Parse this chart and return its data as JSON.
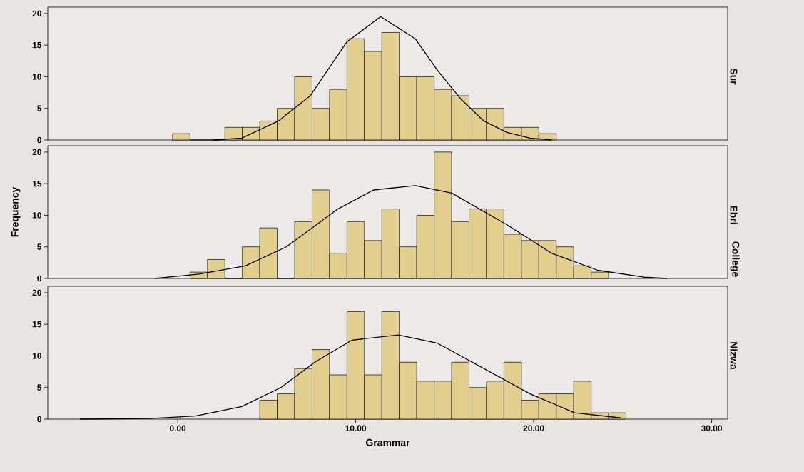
{
  "chart_data": [
    {
      "type": "histogram",
      "title": "Sur",
      "xlim": [
        -7.3,
        30.9
      ],
      "ylim": [
        0,
        21
      ],
      "yticks": [
        0,
        5,
        10,
        15,
        20
      ],
      "tick_labels": "y",
      "series": [
        {
          "type": "histogram",
          "color": "#e2cf8e",
          "bins": [
            -0.29,
            0.69,
            1.67,
            2.65,
            3.63,
            4.61,
            5.59,
            6.57,
            7.55,
            8.53,
            9.51,
            10.49,
            11.47,
            12.45,
            13.43,
            14.41,
            15.39,
            16.37,
            17.35,
            18.33,
            19.31,
            20.29,
            21.27
          ],
          "values": [
            1,
            0,
            0,
            2,
            2,
            3,
            5,
            10,
            5,
            8,
            16,
            14,
            17,
            10,
            10,
            8,
            7,
            5,
            5,
            2,
            2,
            1
          ]
        },
        {
          "type": "line",
          "color": "#000000",
          "x": [
            2.0,
            3.6,
            5.65,
            7.45,
            9.5,
            11.4,
            13.35,
            14.6,
            15.9,
            17.2,
            18.5,
            19.8,
            21.0
          ],
          "values": [
            0,
            0.3,
            3,
            7,
            15.5,
            19.5,
            16,
            11,
            6.5,
            3,
            1.2,
            0.3,
            0
          ]
        }
      ]
    },
    {
      "type": "histogram",
      "title": "Ebri",
      "ylabel": "Frequency",
      "annotations": [
        "College"
      ],
      "xlim": [
        -7.3,
        30.9
      ],
      "ylim": [
        0,
        21
      ],
      "yticks": [
        0,
        5,
        10,
        15,
        20
      ],
      "tick_labels": "y",
      "series": [
        {
          "type": "histogram",
          "color": "#e2cf8e",
          "bins": [
            0.69,
            1.67,
            2.65,
            3.63,
            4.61,
            5.59,
            6.57,
            7.55,
            8.53,
            9.51,
            10.49,
            11.47,
            12.45,
            13.43,
            14.41,
            15.39,
            16.37,
            17.35,
            18.33,
            19.31,
            20.29,
            21.27,
            22.25,
            23.23,
            24.21
          ],
          "values": [
            1,
            3,
            0,
            5,
            8,
            0,
            9,
            14,
            4,
            9,
            6,
            11,
            5,
            10,
            20,
            9,
            11,
            11,
            7,
            6,
            6,
            5,
            2,
            1
          ]
        },
        {
          "type": "line",
          "color": "#000000",
          "x": [
            -1.3,
            1.2,
            3.8,
            6.1,
            9.0,
            11.0,
            13.35,
            15.4,
            18.5,
            21.0,
            23.6,
            26.2,
            27.5
          ],
          "values": [
            0,
            0.7,
            2,
            5,
            11,
            14,
            14.7,
            13.5,
            8.5,
            4,
            1.3,
            0.2,
            0
          ]
        }
      ]
    },
    {
      "type": "histogram",
      "title": "Nizwa",
      "xlabel": "Grammar",
      "xlim": [
        -7.3,
        30.9
      ],
      "ylim": [
        0,
        21
      ],
      "yticks": [
        0,
        5,
        10,
        15,
        20
      ],
      "xticks": [
        {
          "value": 0,
          "label": "0.00"
        },
        {
          "value": 10,
          "label": "10.00"
        },
        {
          "value": 20,
          "label": "20.00"
        },
        {
          "value": 30,
          "label": "30.00"
        }
      ],
      "series": [
        {
          "type": "histogram",
          "color": "#e2cf8e",
          "bins": [
            4.61,
            5.59,
            6.57,
            7.55,
            8.53,
            9.51,
            10.49,
            11.47,
            12.45,
            13.43,
            14.41,
            15.39,
            16.37,
            17.35,
            18.33,
            19.31,
            20.29,
            21.27,
            22.25,
            23.23,
            24.21,
            25.19
          ],
          "values": [
            3,
            4,
            8,
            11,
            7,
            17,
            7,
            17,
            9,
            6,
            6,
            9,
            5,
            6,
            9,
            3,
            4,
            4,
            6,
            1,
            1
          ]
        },
        {
          "type": "line",
          "color": "#000000",
          "x": [
            -5.5,
            -1.6,
            1.0,
            3.6,
            5.8,
            7.7,
            9.8,
            12.4,
            14.6,
            17.2,
            19.8,
            22.3,
            24.9
          ],
          "values": [
            0,
            0.1,
            0.5,
            2,
            5,
            9,
            12.5,
            13.3,
            12,
            8,
            4,
            1,
            0.2
          ]
        }
      ]
    }
  ]
}
